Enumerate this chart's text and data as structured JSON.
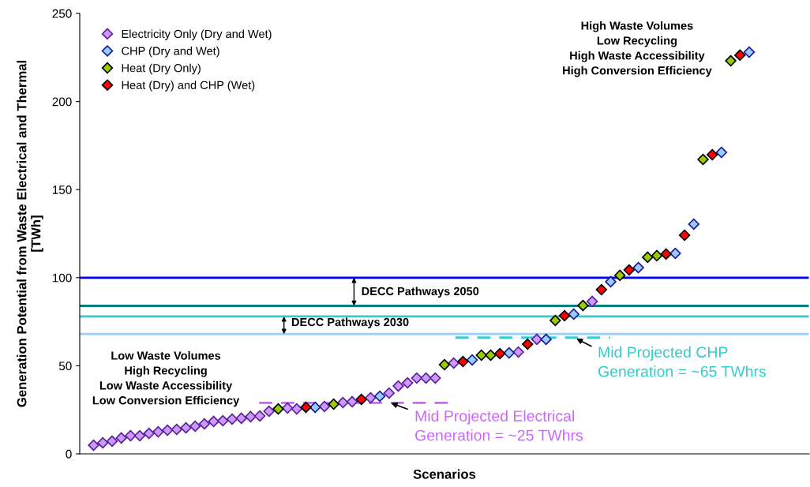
{
  "chart_data": {
    "type": "scatter",
    "xlabel": "Scenarios",
    "ylabel": "Generation Potential from Waste Electrical and Thermal\n[TWh]",
    "categories": [
      null,
      null,
      null,
      null,
      null,
      null,
      null,
      null,
      null,
      null,
      null,
      null,
      null,
      null,
      null,
      null,
      null,
      null,
      null,
      null,
      null,
      null,
      null,
      null,
      null,
      null,
      null,
      null,
      null,
      null,
      null,
      null,
      null,
      null,
      null,
      null,
      null,
      null,
      null,
      null,
      null,
      null,
      null,
      null,
      null,
      null,
      null,
      null,
      null,
      null,
      null,
      null,
      null,
      null,
      null,
      null,
      null,
      null,
      null,
      null,
      null,
      null,
      null,
      null,
      null,
      null,
      null,
      null,
      null,
      null,
      null,
      null,
      null,
      null,
      null,
      null,
      null,
      null,
      null
    ],
    "series": [
      {
        "name": "Electricity Only (Dry and Wet)",
        "color": "#cc99ff",
        "values": [
          null,
          4.9,
          6.3,
          7.2,
          9.0,
          10.3,
          10.3,
          11.6,
          12.5,
          13.4,
          13.9,
          14.8,
          15.7,
          17.0,
          18.4,
          18.8,
          19.7,
          20.2,
          21.1,
          21.5,
          24.2,
          null,
          26.0,
          25.5,
          null,
          null,
          26.9,
          null,
          29.1,
          29.6,
          null,
          31.8,
          null,
          34.5,
          38.5,
          40.3,
          43.0,
          43.0,
          43.0,
          null,
          51.5,
          null,
          null,
          null,
          null,
          null,
          null,
          57.8,
          null,
          65.0,
          null,
          null,
          null,
          null,
          null,
          86.5,
          null,
          null,
          null,
          null,
          null,
          null,
          null,
          null,
          null,
          null,
          null,
          null,
          null,
          null,
          null,
          null,
          null,
          null,
          null,
          null,
          null,
          null,
          null
        ]
      },
      {
        "name": "CHP (Dry and Wet)",
        "color": "#99ccff",
        "values": [
          null,
          null,
          null,
          null,
          null,
          null,
          null,
          null,
          null,
          null,
          null,
          null,
          null,
          null,
          null,
          null,
          null,
          null,
          null,
          null,
          null,
          null,
          null,
          null,
          null,
          26.4,
          null,
          null,
          null,
          null,
          null,
          null,
          32.7,
          null,
          null,
          null,
          null,
          null,
          null,
          null,
          null,
          null,
          53.3,
          null,
          null,
          null,
          57.3,
          null,
          null,
          null,
          65.0,
          null,
          null,
          79.3,
          null,
          null,
          null,
          97.7,
          null,
          null,
          105.7,
          null,
          null,
          null,
          113.8,
          null,
          130.4,
          null,
          null,
          171.1,
          null,
          null,
          228.0,
          null,
          null,
          null,
          null,
          null,
          null
        ]
      },
      {
        "name": "Heat (Dry Only)",
        "color": "#99cc00",
        "values": [
          null,
          null,
          null,
          null,
          null,
          null,
          null,
          null,
          null,
          null,
          null,
          null,
          null,
          null,
          null,
          null,
          null,
          null,
          null,
          null,
          null,
          25.5,
          null,
          null,
          null,
          null,
          null,
          28.2,
          null,
          null,
          null,
          null,
          null,
          null,
          null,
          null,
          null,
          null,
          null,
          50.6,
          null,
          null,
          null,
          56.0,
          56.0,
          null,
          null,
          null,
          null,
          null,
          null,
          75.7,
          null,
          null,
          84.2,
          null,
          null,
          null,
          101.3,
          null,
          null,
          111.6,
          112.5,
          null,
          null,
          null,
          null,
          167.1,
          null,
          null,
          223.1,
          null,
          null,
          null,
          null,
          null,
          null,
          null,
          null
        ]
      },
      {
        "name": "Heat (Dry) and CHP (Wet)",
        "color": "#ff0000",
        "values": [
          null,
          null,
          null,
          null,
          null,
          null,
          null,
          null,
          null,
          null,
          null,
          null,
          null,
          null,
          null,
          null,
          null,
          null,
          null,
          null,
          null,
          null,
          null,
          null,
          26.4,
          null,
          null,
          null,
          null,
          null,
          30.9,
          null,
          null,
          null,
          null,
          null,
          null,
          null,
          null,
          null,
          null,
          52.4,
          null,
          null,
          null,
          56.9,
          null,
          null,
          62.3,
          null,
          null,
          null,
          78.4,
          null,
          null,
          null,
          93.2,
          null,
          null,
          104.4,
          null,
          null,
          null,
          113.4,
          null,
          124.1,
          null,
          null,
          169.8,
          null,
          null,
          226.3,
          null,
          null,
          null,
          null,
          null,
          null,
          null
        ]
      }
    ],
    "marker": "diamond",
    "ylim": [
      0,
      250
    ],
    "yticks": [
      0,
      50,
      100,
      150,
      200,
      250
    ],
    "tick_labels": "y",
    "legend": "top left",
    "ref_lines": [
      {
        "axis": "y",
        "value": 100,
        "color": "#0000ff"
      },
      {
        "axis": "y",
        "value": 84,
        "color": "#008080"
      },
      {
        "axis": "y",
        "value": 78,
        "color": "#33cccc"
      },
      {
        "axis": "y",
        "value": 68,
        "color": "#99ccff"
      },
      {
        "axis": "y",
        "value": 29,
        "color": "#cc66ff",
        "line_style": "dashed",
        "label": "Mid Projected Electrical\nGeneration = ~25 TWhrs"
      },
      {
        "axis": "y",
        "value": 66,
        "color": "#33cccc",
        "line_style": "dashed",
        "label": "Mid Projected CHP\nGeneration = ~65 TWhrs"
      }
    ],
    "annotations": [
      "Low Waste Volumes\nHigh Recycling\nLow Waste Accessibility\nLow Conversion Efficiency",
      "High Waste Volumes\nLow Recycling\nHigh Waste Accessibility\nHigh Conversion Efficiency",
      "DECC Pathways 2050",
      "DECC Pathways 2030"
    ]
  }
}
